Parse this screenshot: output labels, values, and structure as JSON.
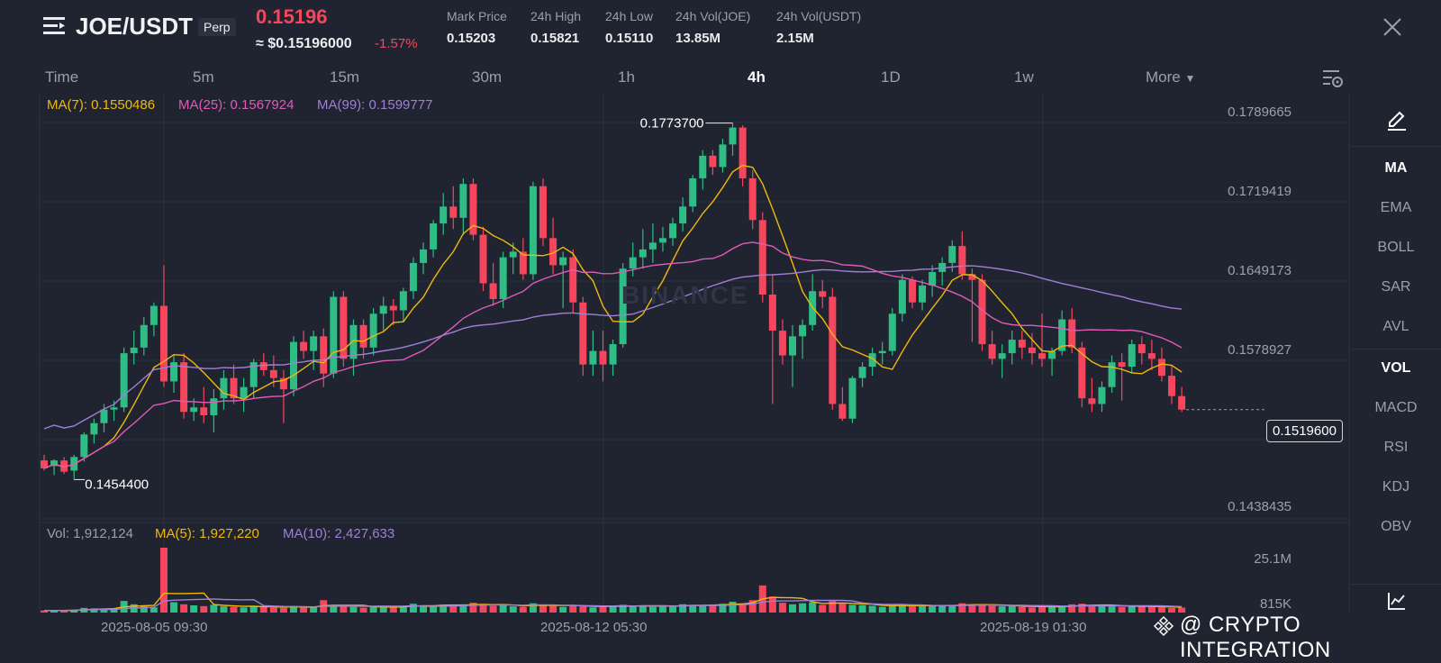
{
  "header": {
    "pair": "JOE/USDT",
    "badge": "Perp",
    "last_price": "0.15196",
    "usd_price": "≈ $0.15196000",
    "change": "-1.57%",
    "stats": [
      {
        "label": "Mark Price",
        "value": "0.15203"
      },
      {
        "label": "24h High",
        "value": "0.15821"
      },
      {
        "label": "24h Low",
        "value": "0.15110"
      },
      {
        "label": "24h Vol(JOE)",
        "value": "13.85M"
      },
      {
        "label": "24h Vol(USDT)",
        "value": "2.15M"
      }
    ]
  },
  "timeframes": {
    "items": [
      "Time",
      "5m",
      "15m",
      "30m",
      "1h",
      "4h",
      "1D",
      "1w",
      "More"
    ],
    "active": "4h"
  },
  "indicators": {
    "ma7": "MA(7): 0.1550486",
    "ma25": "MA(25): 0.1567924",
    "ma99": "MA(99): 0.1599777",
    "vol": "Vol: 1,912,124",
    "vol_ma5": "MA(5): 1,927,220",
    "vol_ma10": "MA(10): 2,427,633"
  },
  "tools": [
    "MA",
    "EMA",
    "BOLL",
    "SAR",
    "AVL",
    "VOL",
    "MACD",
    "RSI",
    "KDJ",
    "OBV"
  ],
  "price_axis": [
    "0.1789665",
    "0.1719419",
    "0.1649173",
    "0.1578927",
    "0.1438435"
  ],
  "volume_axis": [
    "25.1M",
    "815K"
  ],
  "current_price_label": "0.1519600",
  "high_marker": "0.1773700",
  "low_marker": "0.1454400",
  "time_axis": [
    "2025-08-05 09:30",
    "2025-08-12 05:30",
    "2025-08-19 01:30"
  ],
  "watermark_text": "@ CRYPTO INTEGRATION",
  "brand_watermark": "BINANCE",
  "colors": {
    "up": "#2ebd85",
    "down": "#f6465d",
    "ma7": "#f0b90b",
    "ma25": "#e05bb8",
    "ma99": "#a07fd6",
    "background": "#1f2430"
  },
  "chart_data": {
    "type": "candlestick",
    "y_range": [
      0.142,
      0.18
    ],
    "ohlc": [
      [
        0.1475,
        0.148,
        0.1466,
        0.1468
      ],
      [
        0.147,
        0.1476,
        0.1462,
        0.1475
      ],
      [
        0.1475,
        0.1478,
        0.1463,
        0.1465
      ],
      [
        0.1466,
        0.148,
        0.1458,
        0.1478
      ],
      [
        0.1478,
        0.15,
        0.1474,
        0.1498
      ],
      [
        0.1498,
        0.1512,
        0.149,
        0.1508
      ],
      [
        0.1508,
        0.1525,
        0.15,
        0.152
      ],
      [
        0.152,
        0.1528,
        0.151,
        0.1522
      ],
      [
        0.1522,
        0.1575,
        0.1518,
        0.157
      ],
      [
        0.157,
        0.159,
        0.156,
        0.1575
      ],
      [
        0.1575,
        0.1602,
        0.1568,
        0.1595
      ],
      [
        0.1595,
        0.1615,
        0.1585,
        0.1612
      ],
      [
        0.1612,
        0.1648,
        0.154,
        0.1545
      ],
      [
        0.1545,
        0.1568,
        0.1535,
        0.1562
      ],
      [
        0.1562,
        0.157,
        0.1512,
        0.1518
      ],
      [
        0.1518,
        0.153,
        0.151,
        0.1522
      ],
      [
        0.1522,
        0.154,
        0.1508,
        0.1515
      ],
      [
        0.1515,
        0.1538,
        0.15,
        0.153
      ],
      [
        0.153,
        0.1555,
        0.152,
        0.1548
      ],
      [
        0.1548,
        0.156,
        0.1525,
        0.153
      ],
      [
        0.153,
        0.1548,
        0.1518,
        0.154
      ],
      [
        0.154,
        0.1565,
        0.153,
        0.1562
      ],
      [
        0.1562,
        0.157,
        0.155,
        0.1555
      ],
      [
        0.1555,
        0.1568,
        0.154,
        0.1548
      ],
      [
        0.1548,
        0.1555,
        0.1508,
        0.1538
      ],
      [
        0.1538,
        0.1585,
        0.1532,
        0.158
      ],
      [
        0.158,
        0.159,
        0.1565,
        0.1572
      ],
      [
        0.1572,
        0.159,
        0.1555,
        0.1585
      ],
      [
        0.1585,
        0.1592,
        0.154,
        0.1552
      ],
      [
        0.1552,
        0.1625,
        0.1548,
        0.162
      ],
      [
        0.162,
        0.1625,
        0.1558,
        0.1565
      ],
      [
        0.1565,
        0.16,
        0.155,
        0.1595
      ],
      [
        0.1595,
        0.16,
        0.1565,
        0.1575
      ],
      [
        0.1575,
        0.161,
        0.1568,
        0.1605
      ],
      [
        0.1605,
        0.162,
        0.159,
        0.1612
      ],
      [
        0.1612,
        0.1618,
        0.1595,
        0.1608
      ],
      [
        0.1608,
        0.1628,
        0.1598,
        0.1625
      ],
      [
        0.1625,
        0.1655,
        0.1618,
        0.165
      ],
      [
        0.165,
        0.1668,
        0.164,
        0.1662
      ],
      [
        0.1662,
        0.1688,
        0.1655,
        0.1685
      ],
      [
        0.1685,
        0.1712,
        0.1675,
        0.17
      ],
      [
        0.17,
        0.1718,
        0.168,
        0.169
      ],
      [
        0.169,
        0.1725,
        0.1675,
        0.172
      ],
      [
        0.172,
        0.1725,
        0.167,
        0.1675
      ],
      [
        0.1675,
        0.1682,
        0.1625,
        0.1632
      ],
      [
        0.1632,
        0.165,
        0.1612,
        0.1618
      ],
      [
        0.1618,
        0.166,
        0.161,
        0.1655
      ],
      [
        0.1655,
        0.1668,
        0.164,
        0.166
      ],
      [
        0.166,
        0.1672,
        0.1635,
        0.164
      ],
      [
        0.164,
        0.1722,
        0.1635,
        0.1718
      ],
      [
        0.1718,
        0.1725,
        0.1665,
        0.1672
      ],
      [
        0.1672,
        0.169,
        0.164,
        0.1648
      ],
      [
        0.1648,
        0.166,
        0.161,
        0.1655
      ],
      [
        0.1655,
        0.1662,
        0.1605,
        0.1615
      ],
      [
        0.1615,
        0.162,
        0.155,
        0.156
      ],
      [
        0.156,
        0.159,
        0.155,
        0.1572
      ],
      [
        0.1572,
        0.159,
        0.1545,
        0.156
      ],
      [
        0.156,
        0.1582,
        0.155,
        0.1578
      ],
      [
        0.1578,
        0.165,
        0.1575,
        0.1645
      ],
      [
        0.1645,
        0.1668,
        0.1638,
        0.1655
      ],
      [
        0.1655,
        0.168,
        0.1645,
        0.1662
      ],
      [
        0.1662,
        0.1685,
        0.165,
        0.1668
      ],
      [
        0.1668,
        0.1682,
        0.166,
        0.1672
      ],
      [
        0.1672,
        0.169,
        0.1665,
        0.1685
      ],
      [
        0.1685,
        0.1708,
        0.1678,
        0.17
      ],
      [
        0.17,
        0.1728,
        0.1695,
        0.1725
      ],
      [
        0.1725,
        0.175,
        0.1715,
        0.1745
      ],
      [
        0.1745,
        0.175,
        0.1728,
        0.1735
      ],
      [
        0.1735,
        0.176,
        0.173,
        0.1755
      ],
      [
        0.1755,
        0.1774,
        0.1745,
        0.177
      ],
      [
        0.177,
        0.1772,
        0.1718,
        0.1725
      ],
      [
        0.1725,
        0.1732,
        0.168,
        0.1688
      ],
      [
        0.1688,
        0.1695,
        0.1615,
        0.1622
      ],
      [
        0.1622,
        0.164,
        0.1525,
        0.159
      ],
      [
        0.159,
        0.16,
        0.156,
        0.1568
      ],
      [
        0.1568,
        0.1595,
        0.154,
        0.1585
      ],
      [
        0.1585,
        0.16,
        0.1565,
        0.1595
      ],
      [
        0.1595,
        0.164,
        0.159,
        0.1625
      ],
      [
        0.1625,
        0.1635,
        0.161,
        0.162
      ],
      [
        0.162,
        0.1628,
        0.152,
        0.1525
      ],
      [
        0.1525,
        0.154,
        0.151,
        0.1512
      ],
      [
        0.1512,
        0.155,
        0.1508,
        0.1548
      ],
      [
        0.1548,
        0.1562,
        0.154,
        0.1558
      ],
      [
        0.1558,
        0.1575,
        0.155,
        0.157
      ],
      [
        0.157,
        0.158,
        0.156,
        0.1572
      ],
      [
        0.1572,
        0.161,
        0.1568,
        0.1605
      ],
      [
        0.1605,
        0.164,
        0.1598,
        0.1635
      ],
      [
        0.1635,
        0.1638,
        0.161,
        0.1615
      ],
      [
        0.1615,
        0.1635,
        0.1608,
        0.163
      ],
      [
        0.163,
        0.1648,
        0.162,
        0.1642
      ],
      [
        0.1642,
        0.1655,
        0.163,
        0.165
      ],
      [
        0.165,
        0.167,
        0.1642,
        0.1665
      ],
      [
        0.1665,
        0.1678,
        0.1635,
        0.164
      ],
      [
        0.164,
        0.1645,
        0.158,
        0.1635
      ],
      [
        0.1635,
        0.164,
        0.1572,
        0.1578
      ],
      [
        0.1578,
        0.159,
        0.156,
        0.1565
      ],
      [
        0.1565,
        0.1578,
        0.1548,
        0.157
      ],
      [
        0.157,
        0.159,
        0.156,
        0.1582
      ],
      [
        0.1582,
        0.159,
        0.1565,
        0.1575
      ],
      [
        0.1575,
        0.1588,
        0.156,
        0.157
      ],
      [
        0.157,
        0.1605,
        0.1558,
        0.1565
      ],
      [
        0.1565,
        0.1575,
        0.155,
        0.1572
      ],
      [
        0.1572,
        0.1608,
        0.1568,
        0.16
      ],
      [
        0.16,
        0.161,
        0.157,
        0.1575
      ],
      [
        0.1575,
        0.158,
        0.1522,
        0.153
      ],
      [
        0.153,
        0.1548,
        0.1518,
        0.1525
      ],
      [
        0.1525,
        0.1545,
        0.1518,
        0.154
      ],
      [
        0.154,
        0.1568,
        0.1535,
        0.1562
      ],
      [
        0.1562,
        0.157,
        0.1528,
        0.1558
      ],
      [
        0.1558,
        0.1582,
        0.1552,
        0.1578
      ],
      [
        0.1578,
        0.1585,
        0.156,
        0.157
      ],
      [
        0.157,
        0.1582,
        0.1555,
        0.1565
      ],
      [
        0.1565,
        0.1575,
        0.1545,
        0.155
      ],
      [
        0.155,
        0.156,
        0.1525,
        0.1532
      ],
      [
        0.1532,
        0.154,
        0.1518,
        0.152
      ]
    ],
    "volume": [
      0.8,
      0.7,
      0.9,
      1.1,
      1.8,
      1.6,
      1.4,
      1.6,
      4.5,
      3.2,
      2.5,
      2.0,
      25.1,
      4.0,
      3.2,
      2.8,
      2.5,
      3.0,
      2.4,
      2.2,
      2.0,
      2.6,
      2.3,
      2.0,
      1.8,
      2.5,
      2.0,
      2.2,
      4.8,
      2.6,
      2.4,
      2.2,
      1.9,
      2.1,
      2.4,
      2.0,
      2.6,
      3.4,
      2.8,
      2.5,
      3.0,
      2.8,
      3.2,
      3.8,
      3.0,
      2.6,
      2.9,
      2.4,
      2.2,
      3.6,
      3.0,
      2.6,
      2.2,
      2.8,
      2.4,
      2.0,
      2.2,
      2.6,
      3.0,
      2.8,
      2.4,
      2.2,
      2.6,
      2.8,
      3.2,
      3.0,
      2.6,
      2.8,
      3.4,
      4.2,
      3.6,
      4.8,
      10.5,
      6.2,
      3.8,
      3.2,
      3.6,
      4.0,
      3.0,
      4.4,
      3.4,
      3.0,
      2.8,
      2.6,
      2.2,
      2.8,
      3.2,
      2.6,
      2.4,
      2.6,
      2.8,
      3.0,
      3.6,
      3.2,
      2.8,
      2.6,
      2.4,
      2.6,
      2.2,
      2.0,
      2.4,
      2.2,
      2.6,
      3.2,
      3.4,
      2.8,
      2.6,
      2.4,
      2.2,
      2.6,
      2.4,
      2.2,
      2.0,
      1.8,
      1.9
    ]
  }
}
